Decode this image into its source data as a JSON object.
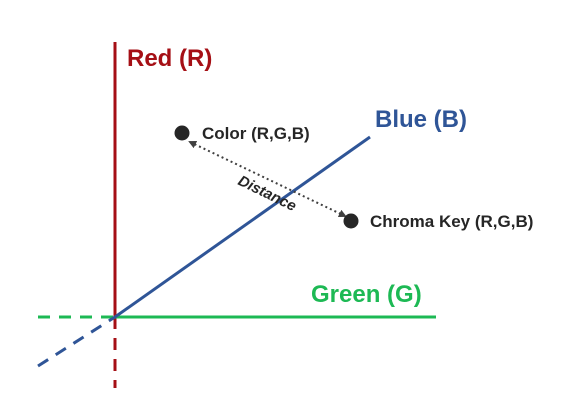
{
  "axes": {
    "red": {
      "label": "Red (R)",
      "color": "#a50f15"
    },
    "green": {
      "label": "Green (G)",
      "color": "#1db954"
    },
    "blue": {
      "label": "Blue (B)",
      "color": "#2f5597"
    }
  },
  "points": {
    "color": {
      "label": "Color (R,G,B)"
    },
    "chroma_key": {
      "label": "Chroma Key (R,G,B)"
    }
  },
  "distance": {
    "label": "Distance"
  },
  "colors": {
    "point": "#262626",
    "text": "#262626",
    "connector": "#404040"
  }
}
